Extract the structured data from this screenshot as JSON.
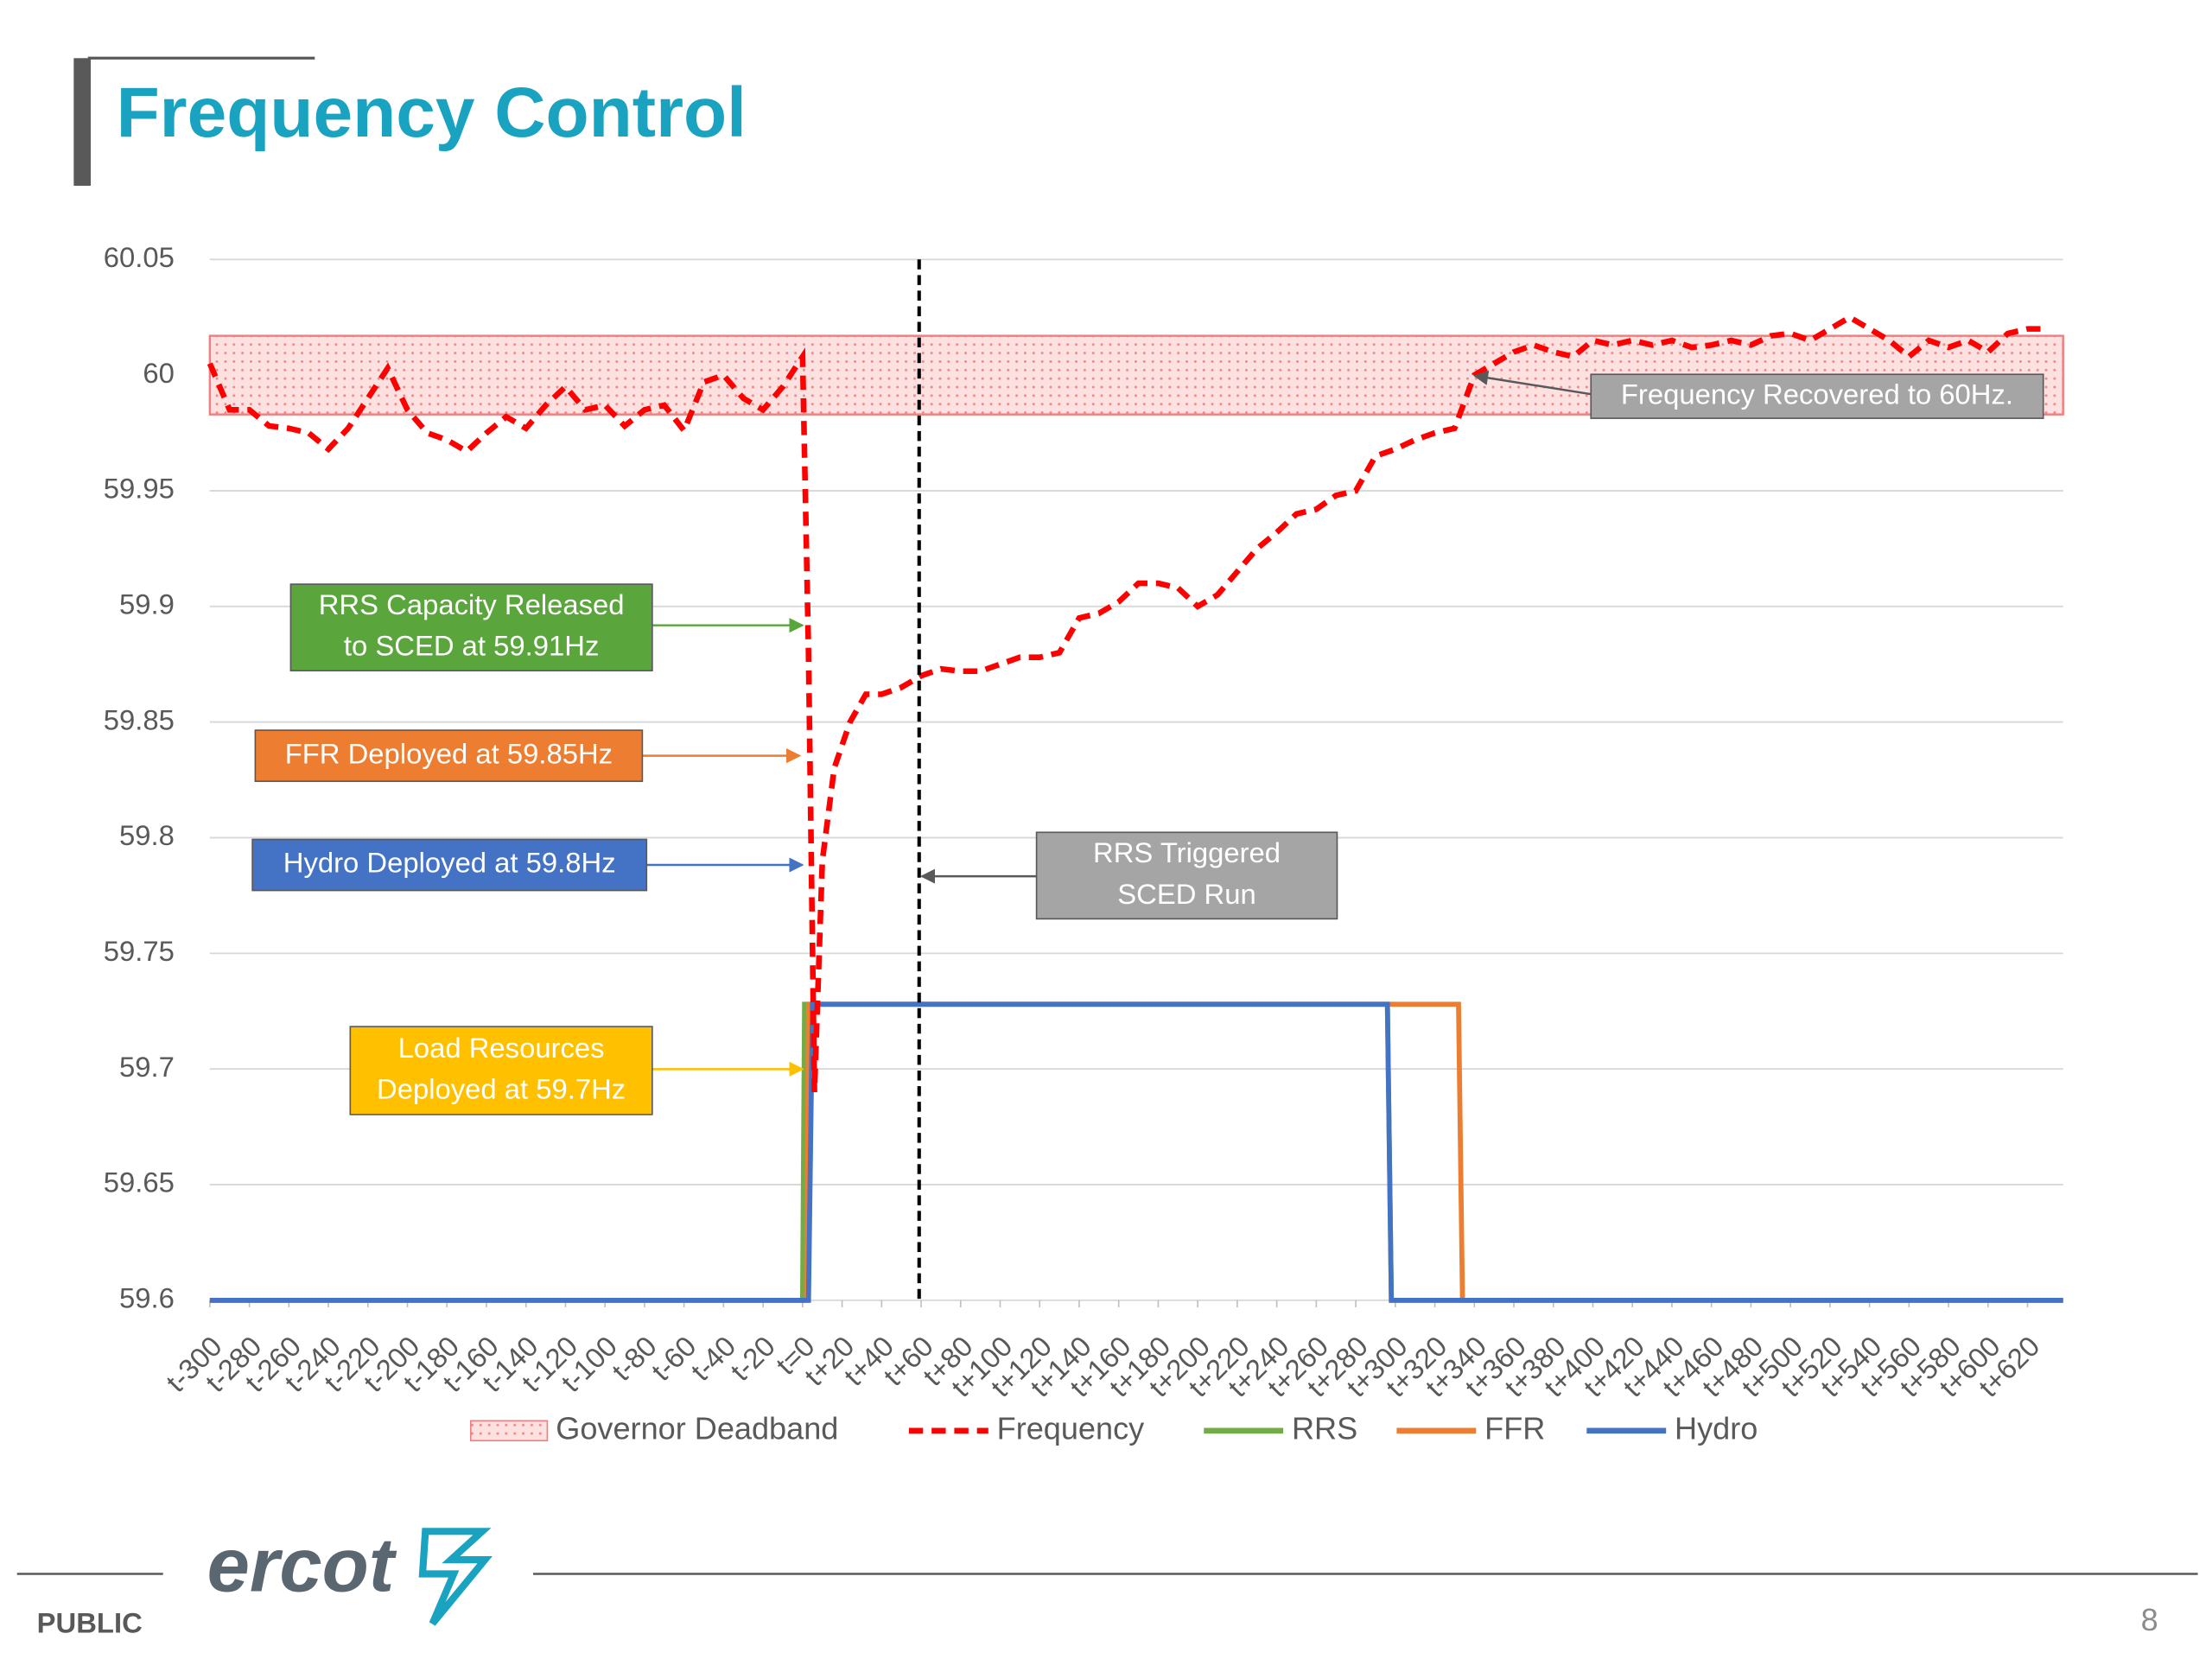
{
  "header": {
    "title": "Frequency Control"
  },
  "footer": {
    "classification": "PUBLIC",
    "logo": "ercot",
    "page": "8"
  },
  "chart_data": {
    "type": "line",
    "xlim": [
      -300,
      638
    ],
    "ylim": [
      59.6,
      60.05
    ],
    "yticks": [
      59.6,
      59.65,
      59.7,
      59.75,
      59.8,
      59.85,
      59.9,
      59.95,
      60,
      60.05
    ],
    "xticks": [
      {
        "value": -300,
        "label": "t-300"
      },
      {
        "value": -280,
        "label": "t-280"
      },
      {
        "value": -260,
        "label": "t-260"
      },
      {
        "value": -240,
        "label": "t-240"
      },
      {
        "value": -220,
        "label": "t-220"
      },
      {
        "value": -200,
        "label": "t-200"
      },
      {
        "value": -180,
        "label": "t-180"
      },
      {
        "value": -160,
        "label": "t-160"
      },
      {
        "value": -140,
        "label": "t-140"
      },
      {
        "value": -120,
        "label": "t-120"
      },
      {
        "value": -100,
        "label": "t-100"
      },
      {
        "value": -80,
        "label": "t-80"
      },
      {
        "value": -60,
        "label": "t-60"
      },
      {
        "value": -40,
        "label": "t-40"
      },
      {
        "value": -20,
        "label": "t-20"
      },
      {
        "value": 0,
        "label": "t=0"
      },
      {
        "value": 20,
        "label": "t+20"
      },
      {
        "value": 40,
        "label": "t+40"
      },
      {
        "value": 60,
        "label": "t+60"
      },
      {
        "value": 80,
        "label": "t+80"
      },
      {
        "value": 100,
        "label": "t+100"
      },
      {
        "value": 120,
        "label": "t+120"
      },
      {
        "value": 140,
        "label": "t+140"
      },
      {
        "value": 160,
        "label": "t+160"
      },
      {
        "value": 180,
        "label": "t+180"
      },
      {
        "value": 200,
        "label": "t+200"
      },
      {
        "value": 220,
        "label": "t+220"
      },
      {
        "value": 240,
        "label": "t+240"
      },
      {
        "value": 260,
        "label": "t+260"
      },
      {
        "value": 280,
        "label": "t+280"
      },
      {
        "value": 300,
        "label": "t+300"
      },
      {
        "value": 320,
        "label": "t+320"
      },
      {
        "value": 340,
        "label": "t+340"
      },
      {
        "value": 360,
        "label": "t+360"
      },
      {
        "value": 380,
        "label": "t+380"
      },
      {
        "value": 400,
        "label": "t+400"
      },
      {
        "value": 420,
        "label": "t+420"
      },
      {
        "value": 440,
        "label": "t+440"
      },
      {
        "value": 460,
        "label": "t+460"
      },
      {
        "value": 480,
        "label": "t+480"
      },
      {
        "value": 500,
        "label": "t+500"
      },
      {
        "value": 520,
        "label": "t+520"
      },
      {
        "value": 540,
        "label": "t+540"
      },
      {
        "value": 560,
        "label": "t+560"
      },
      {
        "value": 580,
        "label": "t+580"
      },
      {
        "value": 600,
        "label": "t+600"
      },
      {
        "value": 620,
        "label": "t+620"
      }
    ],
    "grid": true,
    "deadband": {
      "name": "Governor Deadband",
      "color": "#f08080",
      "range": [
        59.983,
        60.017
      ]
    },
    "vline": {
      "x": 59,
      "color": "#000000"
    },
    "series": [
      {
        "name": "Frequency",
        "color": "#ff0000",
        "style": "dashed",
        "x": [
          -300,
          -290,
          -280,
          -270,
          -260,
          -250,
          -240,
          -230,
          -220,
          -210,
          -200,
          -190,
          -180,
          -170,
          -160,
          -150,
          -140,
          -130,
          -120,
          -110,
          -100,
          -90,
          -80,
          -70,
          -60,
          -50,
          -40,
          -30,
          -20,
          -10,
          0,
          3,
          6,
          10,
          16,
          24,
          32,
          40,
          50,
          60,
          70,
          80,
          90,
          100,
          110,
          120,
          130,
          140,
          150,
          160,
          170,
          180,
          190,
          200,
          210,
          220,
          230,
          240,
          250,
          260,
          270,
          280,
          290,
          300,
          310,
          320,
          330,
          340,
          350,
          360,
          370,
          380,
          390,
          400,
          410,
          420,
          430,
          440,
          450,
          460,
          470,
          480,
          490,
          500,
          510,
          520,
          530,
          540,
          550,
          560,
          570,
          580,
          590,
          600,
          610,
          620,
          630
        ],
        "values": [
          60.005,
          59.985,
          59.985,
          59.978,
          59.977,
          59.975,
          59.968,
          59.977,
          59.99,
          60.003,
          59.985,
          59.975,
          59.972,
          59.967,
          59.975,
          59.982,
          59.977,
          59.987,
          59.995,
          59.985,
          59.987,
          59.978,
          59.985,
          59.987,
          59.976,
          59.997,
          60.0,
          59.99,
          59.985,
          59.995,
          60.008,
          59.88,
          59.69,
          59.79,
          59.83,
          59.85,
          59.862,
          59.862,
          59.865,
          59.87,
          59.873,
          59.872,
          59.872,
          59.875,
          59.878,
          59.878,
          59.88,
          59.895,
          59.897,
          59.902,
          59.91,
          59.91,
          59.908,
          59.9,
          59.905,
          59.915,
          59.925,
          59.932,
          59.94,
          59.942,
          59.948,
          59.95,
          59.965,
          59.968,
          59.972,
          59.975,
          59.977,
          60.0,
          60.005,
          60.01,
          60.013,
          60.01,
          60.008,
          60.015,
          60.013,
          60.015,
          60.013,
          60.015,
          60.012,
          60.013,
          60.015,
          60.013,
          60.017,
          60.018,
          60.015,
          60.02,
          60.025,
          60.02,
          60.015,
          60.008,
          60.015,
          60.012,
          60.015,
          60.01,
          60.018,
          60.02,
          60.02
        ]
      },
      {
        "name": "RRS",
        "color": "#70ad47",
        "style": "solid",
        "x": [
          -300,
          0,
          1,
          296,
          298,
          638
        ],
        "values": [
          59.6,
          59.6,
          59.728,
          59.728,
          59.6,
          59.6
        ]
      },
      {
        "name": "FFR",
        "color": "#ed7d31",
        "style": "solid",
        "x": [
          -300,
          2,
          3,
          332,
          334,
          638
        ],
        "values": [
          59.6,
          59.6,
          59.728,
          59.728,
          59.6,
          59.6
        ]
      },
      {
        "name": "Hydro",
        "color": "#4472c4",
        "style": "solid",
        "x": [
          -300,
          3,
          5,
          296,
          298,
          638
        ],
        "values": [
          59.6,
          59.6,
          59.728,
          59.728,
          59.6,
          59.6
        ]
      }
    ],
    "annotations": [
      {
        "lines": [
          "RRS Capacity Released",
          "to SCED at 59.91Hz"
        ],
        "color": "#5aa53c"
      },
      {
        "lines": [
          "FFR Deployed at 59.85Hz"
        ],
        "color": "#ed7d31"
      },
      {
        "lines": [
          "Hydro Deployed at 59.8Hz"
        ],
        "color": "#4472c4"
      },
      {
        "lines": [
          "Load Resources",
          "Deployed at 59.7Hz"
        ],
        "color": "#ffc000"
      },
      {
        "lines": [
          "RRS Triggered",
          "SCED Run"
        ],
        "color": "#a5a5a5"
      },
      {
        "lines": [
          "Frequency Recovered to 60Hz."
        ],
        "color": "#a5a5a5"
      }
    ]
  }
}
